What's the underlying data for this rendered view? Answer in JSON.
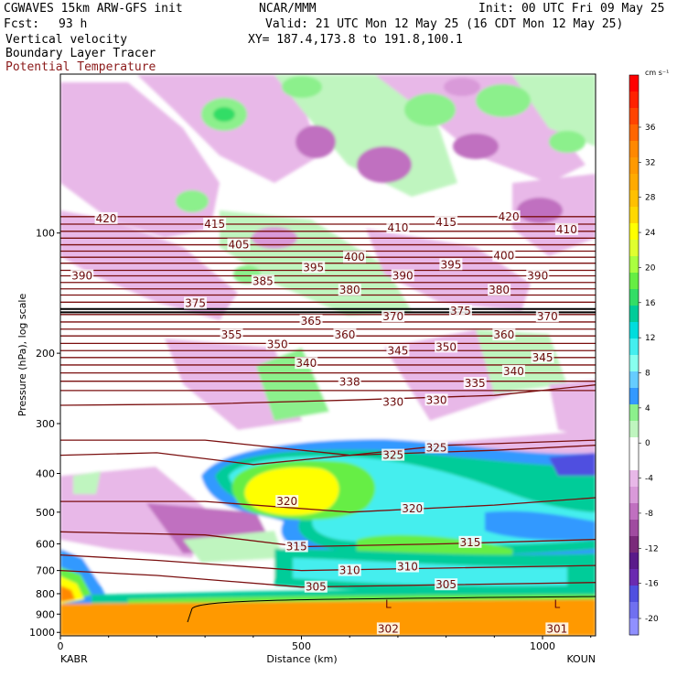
{
  "header": {
    "model": "CGWAVES 15km ARW-GFS init",
    "org": "NCAR/MMM",
    "init": "Init: 00 UTC Fri 09 May 25",
    "fcst_label": "Fcst:",
    "fcst_value": "93 h",
    "valid": "Valid: 21 UTC Mon 12 May 25 (16 CDT Mon 12 May 25)",
    "field1": "Vertical velocity",
    "xy": "XY= 187.4,173.8 to 191.8,100.1",
    "field2": "Boundary Layer Tracer",
    "field3": "Potential Temperature"
  },
  "colorbar": {
    "units": "cm s⁻¹",
    "ticks": [
      "36",
      "32",
      "28",
      "24",
      "20",
      "16",
      "12",
      "8",
      "4",
      "0",
      "-4",
      "-8",
      "-12",
      "-16",
      "-20"
    ],
    "colors": [
      "#ff0000",
      "#ff2200",
      "#ff4400",
      "#ff6600",
      "#ff8800",
      "#ff9900",
      "#ffaa00",
      "#ffc000",
      "#ffd800",
      "#ffff00",
      "#e0ff30",
      "#aaff40",
      "#66ee44",
      "#33dd66",
      "#00cc99",
      "#00dddd",
      "#44eeee",
      "#88ffee",
      "#66ccff",
      "#3399ff",
      "#8cf08c",
      "#bff5bf",
      "#ffffff",
      "#ffffff",
      "#e8b8e8",
      "#d99ad9",
      "#c070c0",
      "#a04ca0",
      "#7a2a7a",
      "#5a1a8a",
      "#6a2ab0",
      "#5050e0",
      "#7070f0",
      "#9090ff"
    ]
  },
  "chart_data": {
    "type": "heatmap",
    "title": "",
    "xlabel": "Distance (km)",
    "ylabel": "Pressure (hPa), log scale",
    "x_ticks": [
      "0",
      "500",
      "1000"
    ],
    "x_tick_values": [
      0,
      500,
      1000
    ],
    "xlim": [
      0,
      1110
    ],
    "y_ticks": [
      "100",
      "200",
      "300",
      "400",
      "500",
      "600",
      "700",
      "800",
      "900",
      "1000"
    ],
    "y_scale": "log",
    "ylim": [
      1020,
      40
    ],
    "x_endpoint_labels": [
      "KABR",
      "KOUN"
    ],
    "contour_labels": [
      {
        "v": "420",
        "x": 95,
        "p": 92
      },
      {
        "v": "415",
        "x": 320,
        "p": 95
      },
      {
        "v": "410",
        "x": 700,
        "p": 97
      },
      {
        "v": "415",
        "x": 800,
        "p": 94
      },
      {
        "v": "420",
        "x": 930,
        "p": 91
      },
      {
        "v": "410",
        "x": 1050,
        "p": 98
      },
      {
        "v": "405",
        "x": 370,
        "p": 107
      },
      {
        "v": "400",
        "x": 610,
        "p": 115
      },
      {
        "v": "400",
        "x": 920,
        "p": 114
      },
      {
        "v": "390",
        "x": 45,
        "p": 128
      },
      {
        "v": "395",
        "x": 525,
        "p": 122
      },
      {
        "v": "395",
        "x": 810,
        "p": 120
      },
      {
        "v": "390",
        "x": 710,
        "p": 128
      },
      {
        "v": "390",
        "x": 990,
        "p": 128
      },
      {
        "v": "385",
        "x": 420,
        "p": 132
      },
      {
        "v": "380",
        "x": 600,
        "p": 139
      },
      {
        "v": "380",
        "x": 910,
        "p": 139
      },
      {
        "v": "375",
        "x": 280,
        "p": 150
      },
      {
        "v": "375",
        "x": 830,
        "p": 157
      },
      {
        "v": "370",
        "x": 690,
        "p": 162
      },
      {
        "v": "370",
        "x": 1010,
        "p": 162
      },
      {
        "v": "365",
        "x": 520,
        "p": 166
      },
      {
        "v": "355",
        "x": 355,
        "p": 180
      },
      {
        "v": "360",
        "x": 590,
        "p": 180
      },
      {
        "v": "360",
        "x": 920,
        "p": 180
      },
      {
        "v": "350",
        "x": 450,
        "p": 190
      },
      {
        "v": "345",
        "x": 700,
        "p": 197
      },
      {
        "v": "350",
        "x": 800,
        "p": 193
      },
      {
        "v": "345",
        "x": 1000,
        "p": 205
      },
      {
        "v": "340",
        "x": 510,
        "p": 212
      },
      {
        "v": "340",
        "x": 940,
        "p": 222
      },
      {
        "v": "338",
        "x": 600,
        "p": 236
      },
      {
        "v": "335",
        "x": 860,
        "p": 238
      },
      {
        "v": "330",
        "x": 690,
        "p": 265
      },
      {
        "v": "330",
        "x": 780,
        "p": 262
      },
      {
        "v": "325",
        "x": 690,
        "p": 360
      },
      {
        "v": "325",
        "x": 780,
        "p": 345
      },
      {
        "v": "320",
        "x": 470,
        "p": 470
      },
      {
        "v": "320",
        "x": 730,
        "p": 490
      },
      {
        "v": "315",
        "x": 490,
        "p": 610
      },
      {
        "v": "315",
        "x": 850,
        "p": 595
      },
      {
        "v": "310",
        "x": 600,
        "p": 700
      },
      {
        "v": "310",
        "x": 720,
        "p": 685
      },
      {
        "v": "305",
        "x": 530,
        "p": 770
      },
      {
        "v": "305",
        "x": 800,
        "p": 760
      },
      {
        "v": "302",
        "x": 680,
        "p": 980
      },
      {
        "v": "301",
        "x": 1030,
        "p": 980
      }
    ],
    "extra_labels": [
      {
        "text": "L",
        "x": 680,
        "p": 850
      },
      {
        "text": "L",
        "x": 1030,
        "p": 850
      }
    ],
    "grid": false
  }
}
